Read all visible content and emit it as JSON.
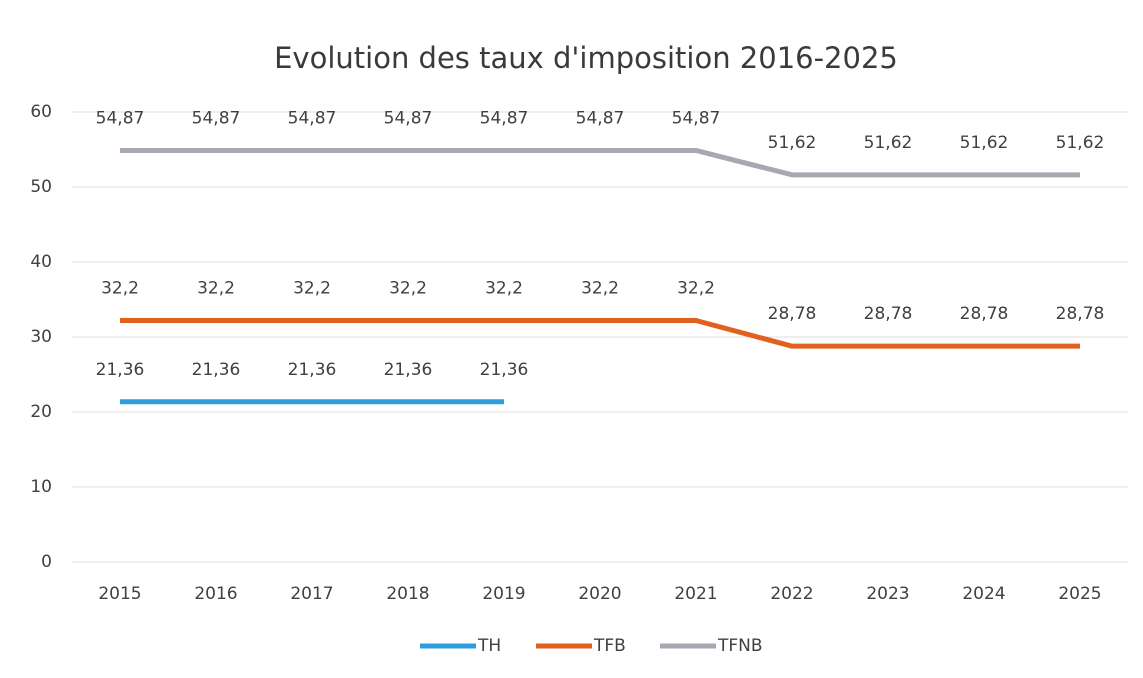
{
  "chart_data": {
    "type": "line",
    "title": "Evolution des taux d'imposition 2016-2025",
    "categories": [
      "2015",
      "2016",
      "2017",
      "2018",
      "2019",
      "2020",
      "2021",
      "2022",
      "2023",
      "2024",
      "2025"
    ],
    "series": [
      {
        "name": "TH",
        "color": "#2e9ddb",
        "values": [
          21.36,
          21.36,
          21.36,
          21.36,
          21.36,
          null,
          null,
          null,
          null,
          null,
          null
        ],
        "value_labels": [
          "21,36",
          "21,36",
          "21,36",
          "21,36",
          "21,36",
          null,
          null,
          null,
          null,
          null,
          null
        ]
      },
      {
        "name": "TFB",
        "color": "#e2601e",
        "values": [
          32.2,
          32.2,
          32.2,
          32.2,
          32.2,
          32.2,
          32.2,
          28.78,
          28.78,
          28.78,
          28.78
        ],
        "value_labels": [
          "32,2",
          "32,2",
          "32,2",
          "32,2",
          "32,2",
          "32,2",
          "32,2",
          "28,78",
          "28,78",
          "28,78",
          "28,78"
        ]
      },
      {
        "name": "TFNB",
        "color": "#a8a8b2",
        "values": [
          54.87,
          54.87,
          54.87,
          54.87,
          54.87,
          54.87,
          54.87,
          51.62,
          51.62,
          51.62,
          51.62
        ],
        "value_labels": [
          "54,87",
          "54,87",
          "54,87",
          "54,87",
          "54,87",
          "54,87",
          "54,87",
          "51,62",
          "51,62",
          "51,62",
          "51,62"
        ]
      }
    ],
    "ylim": [
      0,
      60
    ],
    "yticks": [
      0,
      10,
      20,
      30,
      40,
      50,
      60
    ],
    "grid": true,
    "legend": "bottom"
  }
}
